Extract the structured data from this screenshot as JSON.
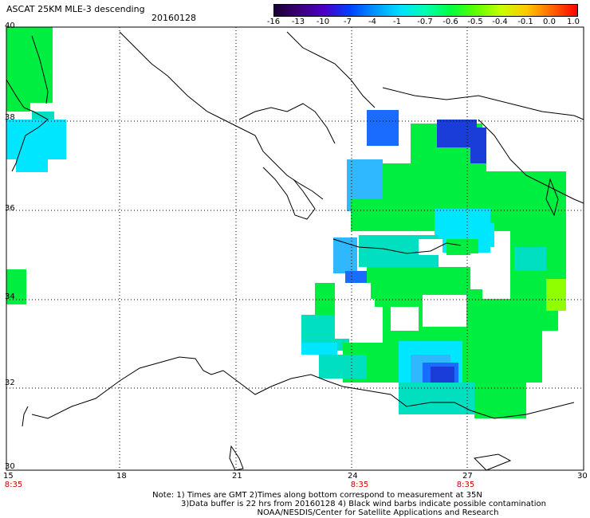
{
  "header": {
    "title": "ASCAT 25KM MLE-3 descending",
    "date": "20160128"
  },
  "colorbar": {
    "labels": [
      "-16",
      "-13",
      "-10",
      "-7",
      "-4",
      "-1",
      "-0.7",
      "-0.6",
      "-0.5",
      "-0.4",
      "-0.1",
      "0.0",
      "1.0"
    ],
    "colors": [
      "#1a0033",
      "#3a007a",
      "#4b00c8",
      "#0040ff",
      "#0096ff",
      "#00e0ff",
      "#00ffb0",
      "#00ff40",
      "#60ff00",
      "#c8ff00",
      "#ffc800",
      "#ff6400",
      "#ff0000"
    ]
  },
  "axes": {
    "lon_labels": [
      "15",
      "18",
      "21",
      "24",
      "27",
      "30"
    ],
    "lat_labels": [
      "40",
      "38",
      "36",
      "34",
      "32",
      "30"
    ]
  },
  "time_labels": [
    "8:35",
    "8:35",
    "8:35"
  ],
  "notes": {
    "line1": "Note: 1) Times are GMT 2)Times along bottom correspond to measurement at 35N",
    "line2": "3)Data buffer is 22 hrs from 20160128 4) Black wind barbs indicate possible contamination",
    "line3": "NOAA/NESDIS/Center for Satellite Applications and Research"
  },
  "map_colors": {
    "green": "#00ee40",
    "teal": "#00e0c0",
    "cyan": "#00e6ff",
    "light_blue": "#30b8ff",
    "blue": "#1a6cff",
    "dark_blue": "#1a3cd8",
    "lime": "#90ff00"
  }
}
